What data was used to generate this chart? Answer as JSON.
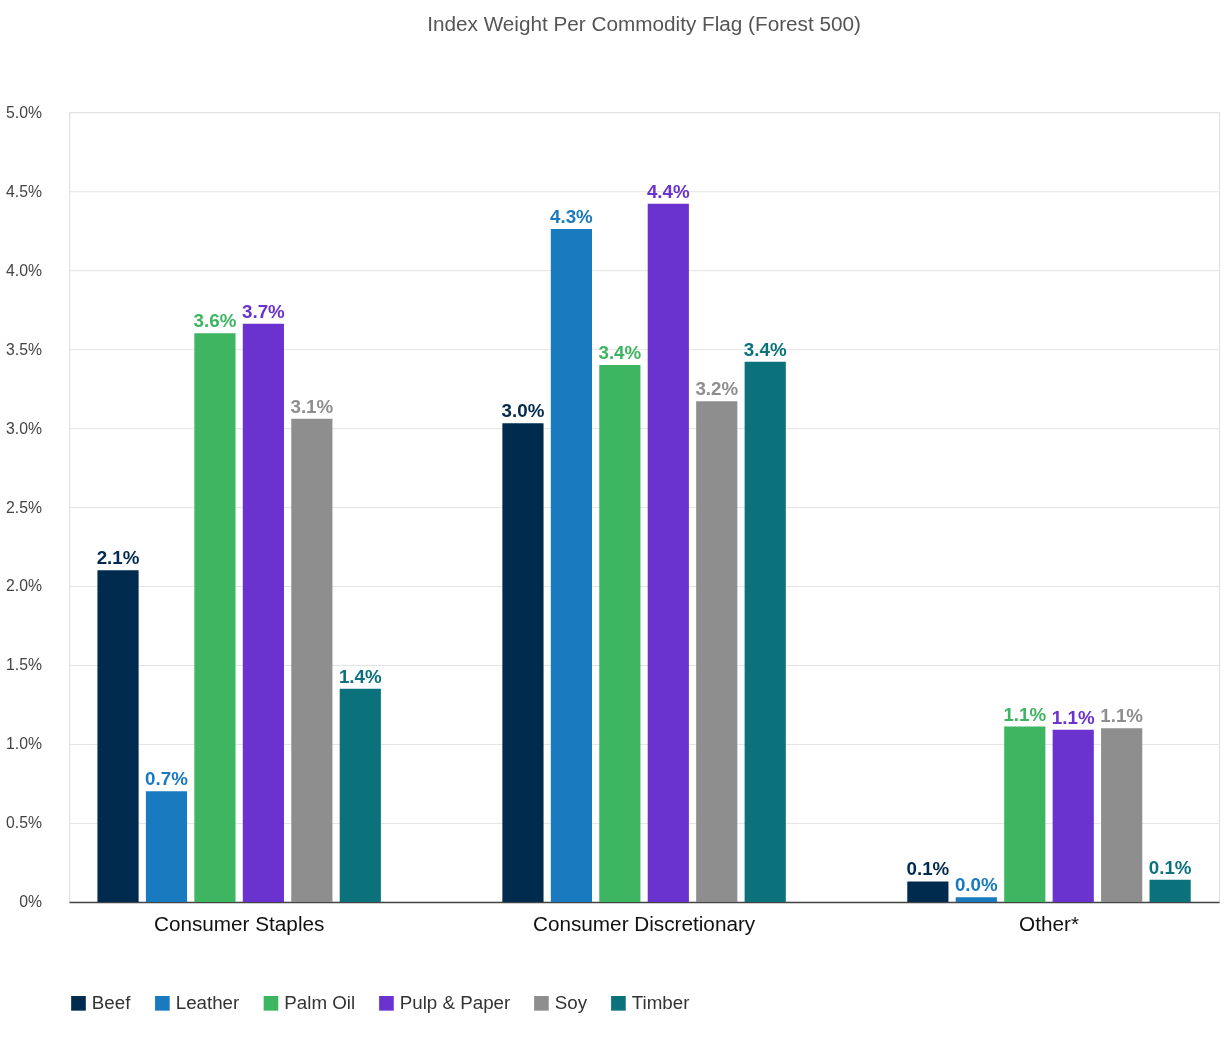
{
  "chart_data": {
    "type": "bar",
    "title": "Index Weight Per Commodity Flag (Forest 500)",
    "categories": [
      "Consumer Staples",
      "Consumer Discretionary",
      "Other*"
    ],
    "series": [
      {
        "name": "Beef",
        "color": "#002b4e",
        "values": [
          2.1,
          3.03,
          0.13
        ],
        "value_labels": [
          "2.1%",
          "3.0%",
          "0.1%"
        ]
      },
      {
        "name": "Leather",
        "color": "#1a7abf",
        "values": [
          0.7,
          4.26,
          0.03
        ],
        "value_labels": [
          "0.7%",
          "4.3%",
          "0.0%"
        ]
      },
      {
        "name": "Palm Oil",
        "color": "#3db561",
        "values": [
          3.6,
          3.4,
          1.11
        ],
        "value_labels": [
          "3.6%",
          "3.4%",
          "1.1%"
        ]
      },
      {
        "name": "Pulp & Paper",
        "color": "#6a33cf",
        "values": [
          3.66,
          4.42,
          1.09
        ],
        "value_labels": [
          "3.7%",
          "4.4%",
          "1.1%"
        ]
      },
      {
        "name": "Soy",
        "color": "#8e8e8e",
        "values": [
          3.06,
          3.17,
          1.1
        ],
        "value_labels": [
          "3.1%",
          "3.2%",
          "1.1%"
        ]
      },
      {
        "name": "Timber",
        "color": "#0b727c",
        "values": [
          1.35,
          3.42,
          0.14
        ],
        "value_labels": [
          "1.4%",
          "3.4%",
          "0.1%"
        ]
      }
    ],
    "ylim": [
      0,
      5.0
    ],
    "yticks": [
      {
        "value": 0,
        "label": "0%"
      },
      {
        "value": 0.5,
        "label": "0.5%"
      },
      {
        "value": 1.0,
        "label": "1.0%"
      },
      {
        "value": 1.5,
        "label": "1.5%"
      },
      {
        "value": 2.0,
        "label": "2.0%"
      },
      {
        "value": 2.5,
        "label": "2.5%"
      },
      {
        "value": 3.0,
        "label": "3.0%"
      },
      {
        "value": 3.5,
        "label": "3.5%"
      },
      {
        "value": 4.0,
        "label": "4.0%"
      },
      {
        "value": 4.5,
        "label": "4.5%"
      },
      {
        "value": 5.0,
        "label": "5.0%"
      }
    ],
    "grid": "y",
    "legend": "bottom"
  }
}
